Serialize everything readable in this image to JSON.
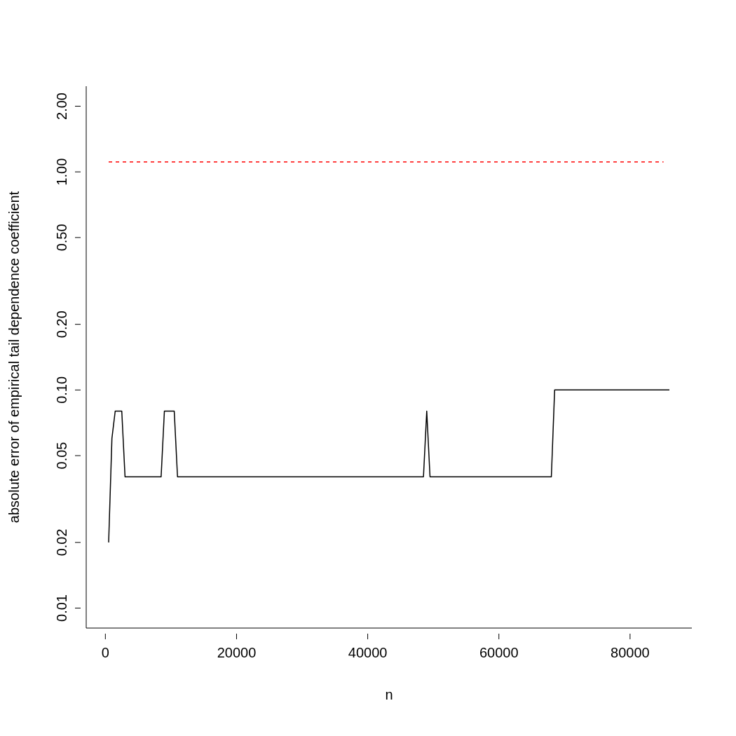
{
  "chart_data": {
    "type": "line",
    "xlabel": "n",
    "ylabel": "absolute error of empirical tail dependence coefficient",
    "log": "y",
    "legend": false,
    "grid": false,
    "marker": "none",
    "xlim": [
      -2920,
      89420
    ],
    "xticks": [
      0,
      20000,
      40000,
      60000,
      80000
    ],
    "ylim": [
      0.0081,
      2.47
    ],
    "yticks": [
      0.01,
      0.02,
      0.05,
      {
        "value": 0.1,
        "label": "0.10"
      },
      {
        "value": 0.2,
        "label": "0.20"
      },
      {
        "value": 0.5,
        "label": "0.50"
      },
      {
        "value": 1,
        "label": "1.00"
      },
      {
        "value": 2,
        "label": "2.00"
      }
    ],
    "series": [
      {
        "color": "#000000",
        "line_style": "solid",
        "x": [
          500,
          1000,
          1500,
          2500,
          3000,
          8500,
          9000,
          10500,
          11000,
          48500,
          49000,
          49500,
          68000,
          68500,
          86000
        ],
        "values": [
          0.02,
          0.06,
          0.08,
          0.08,
          0.04,
          0.04,
          0.08,
          0.08,
          0.04,
          0.04,
          0.08,
          0.04,
          0.04,
          0.1,
          0.1
        ]
      },
      {
        "color": "#ff0000",
        "line_style": "dashed",
        "x": [
          500,
          85100
        ],
        "values": [
          1.11,
          1.11
        ]
      }
    ]
  }
}
